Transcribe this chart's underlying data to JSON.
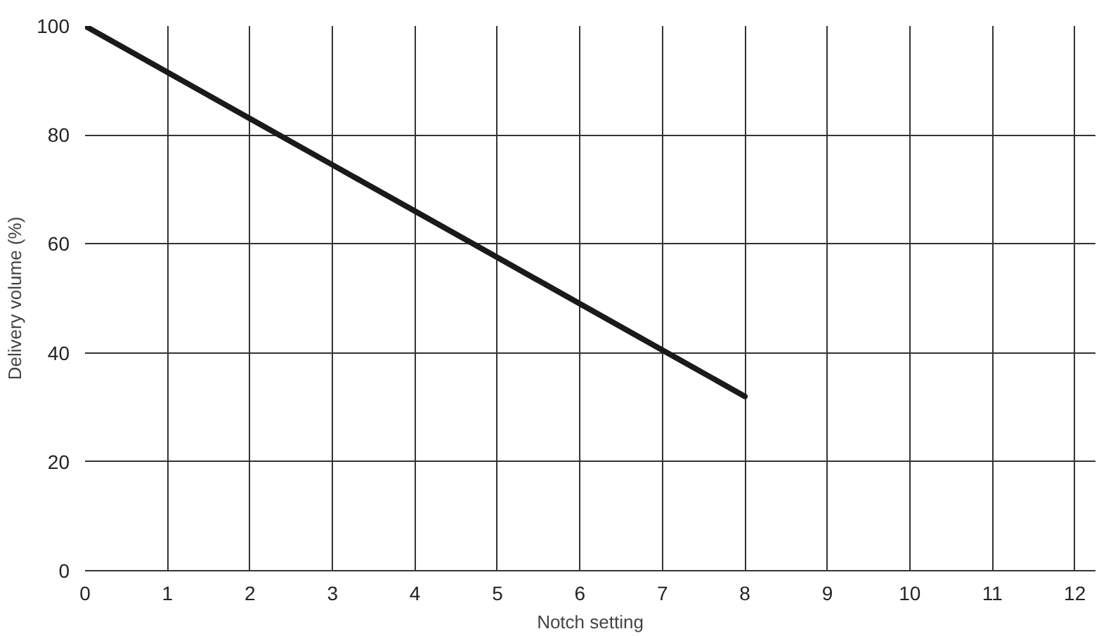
{
  "chart_data": {
    "type": "line",
    "xlabel": "Notch setting",
    "ylabel": "Delivery volume (%)",
    "x": [
      0,
      1,
      2,
      3,
      4,
      5,
      6,
      7,
      8
    ],
    "series": [
      {
        "color": "#1a1a1a",
        "values": [
          100,
          91.5,
          83,
          74.5,
          66,
          57.5,
          49,
          40.5,
          32
        ]
      }
    ],
    "xlim": [
      0,
      12.25
    ],
    "ylim": [
      0,
      100
    ],
    "xticks": [
      0,
      1,
      2,
      3,
      4,
      5,
      6,
      7,
      8,
      9,
      10,
      11,
      12
    ],
    "yticks": [
      0,
      20,
      40,
      60,
      80,
      100
    ],
    "grid": true,
    "marker": "none",
    "line_style": "solid"
  }
}
